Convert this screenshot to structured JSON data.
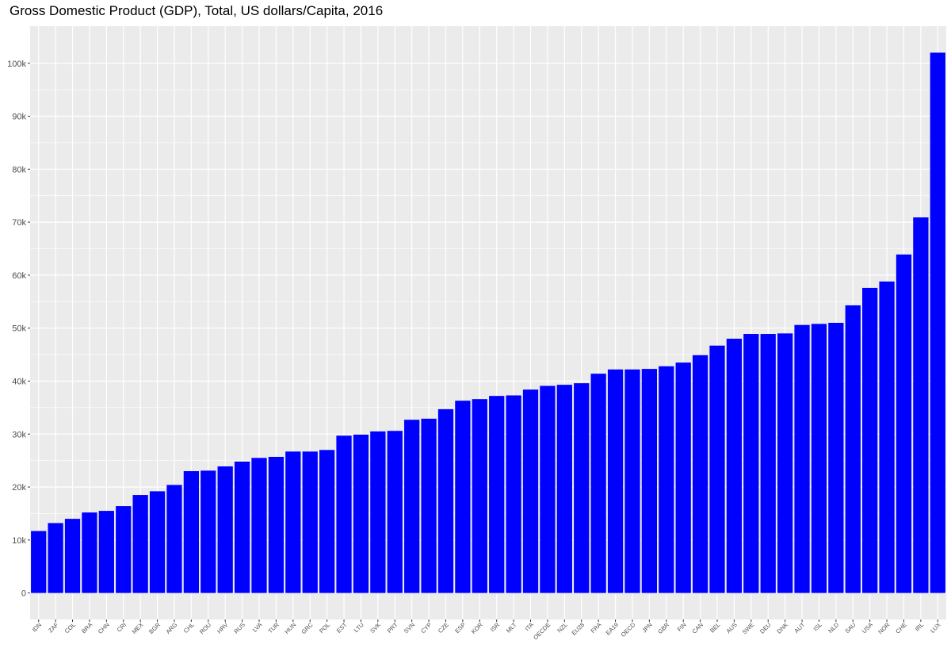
{
  "chart_data": {
    "type": "bar",
    "title": "Gross Domestic Product (GDP), Total, US dollars/Capita, 2016",
    "xlabel": "",
    "ylabel": "",
    "ylim": [
      -5000,
      107000
    ],
    "yticks": [
      0,
      10000,
      20000,
      30000,
      40000,
      50000,
      60000,
      70000,
      80000,
      90000,
      100000
    ],
    "ytick_labels": [
      "0",
      "10k",
      "20k",
      "30k",
      "40k",
      "50k",
      "60k",
      "70k",
      "80k",
      "90k",
      "100k"
    ],
    "grid": true,
    "bar_color": "#0000ff",
    "panel_background": "#ebebeb",
    "grid_color": "#ffffff",
    "categories": [
      "IDN",
      "ZAF",
      "COL",
      "BRA",
      "CHN",
      "CRI",
      "MEX",
      "BGR",
      "ARG",
      "CHL",
      "ROU",
      "HRV",
      "RUS",
      "LVA",
      "TUR",
      "HUN",
      "GRC",
      "POL",
      "EST",
      "LTU",
      "SVK",
      "PRT",
      "SVN",
      "CYP",
      "CZE",
      "ESP",
      "KOR",
      "ISR",
      "MLT",
      "ITA",
      "OECDE",
      "NZL",
      "EU28",
      "FRA",
      "EA19",
      "OECD",
      "JPN",
      "GBR",
      "FIN",
      "CAN",
      "BEL",
      "AUS",
      "SWE",
      "DEU",
      "DNK",
      "AUT",
      "ISL",
      "NLD",
      "SAU",
      "USA",
      "NOR",
      "CHE",
      "IRL",
      "LUX"
    ],
    "values": [
      11700,
      13200,
      14000,
      15200,
      15500,
      16400,
      18500,
      19200,
      20400,
      23000,
      23100,
      23900,
      24800,
      25500,
      25700,
      26700,
      26700,
      27000,
      29700,
      29900,
      30500,
      30600,
      32700,
      32900,
      34700,
      36300,
      36600,
      37200,
      37300,
      38400,
      39100,
      39300,
      39600,
      41400,
      42200,
      42200,
      42300,
      42800,
      43500,
      44900,
      46700,
      48000,
      48900,
      48900,
      49000,
      50600,
      50800,
      51000,
      54300,
      57600,
      58800,
      63900,
      70900,
      102000
    ]
  }
}
